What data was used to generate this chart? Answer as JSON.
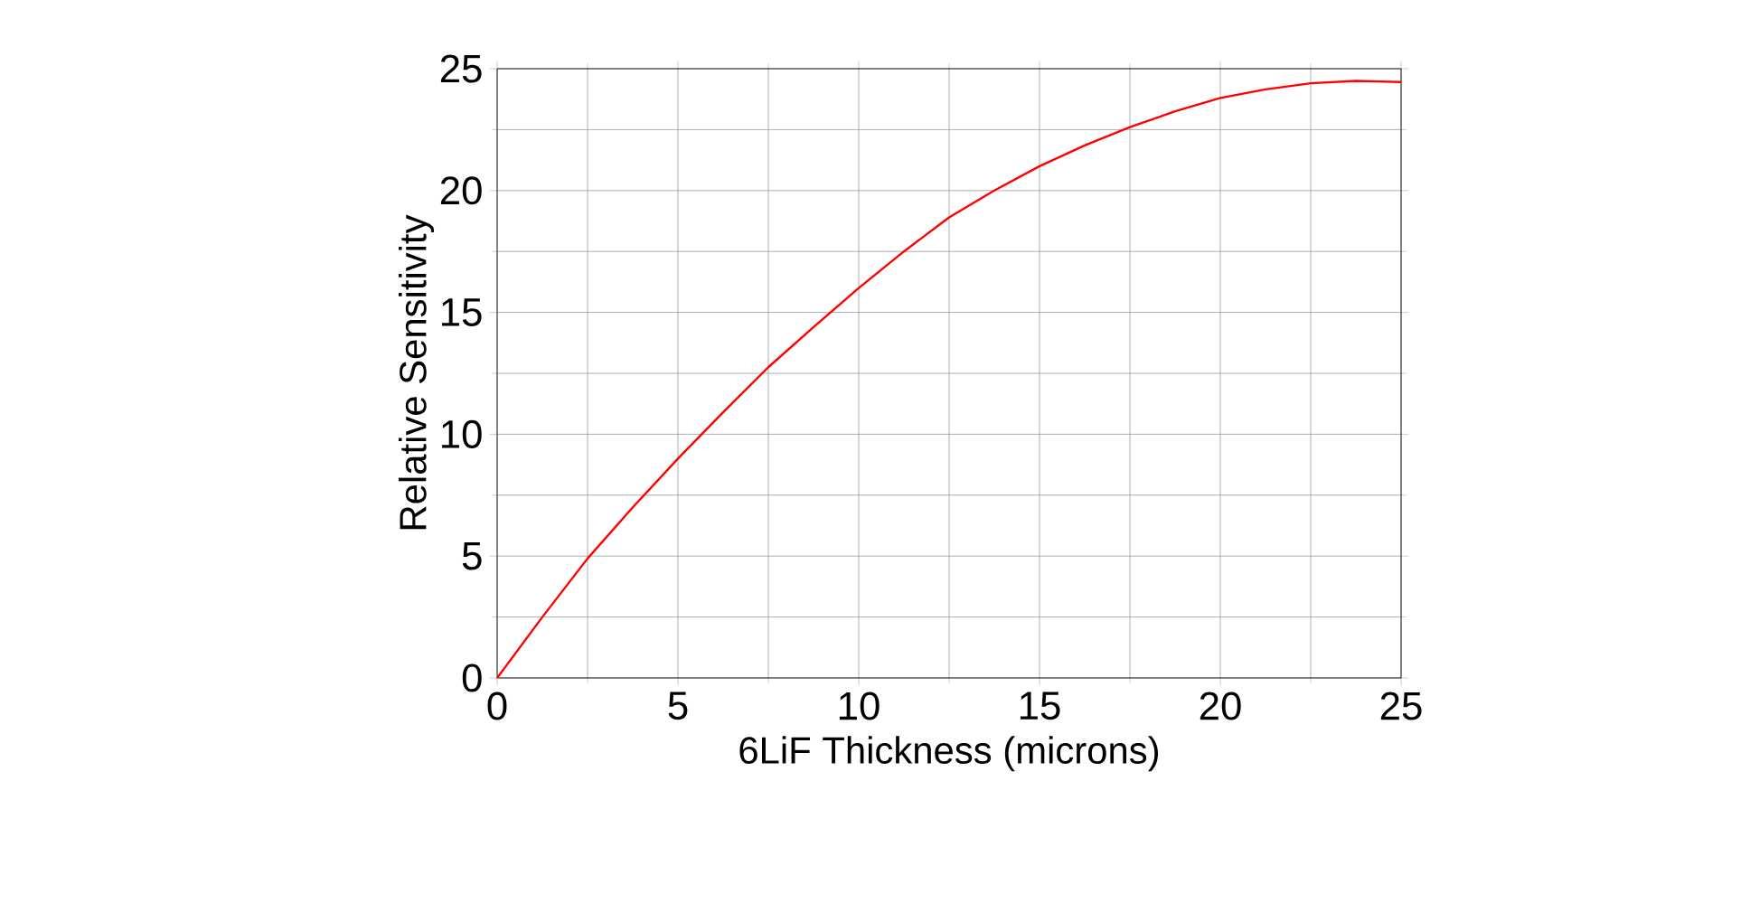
{
  "chart_data": {
    "type": "line",
    "xlabel": "6LiF Thickness (microns)",
    "ylabel": "Relative Sensitivity",
    "xlim": [
      0,
      25
    ],
    "ylim": [
      0,
      25
    ],
    "xticks": [
      0,
      5,
      10,
      15,
      20,
      25
    ],
    "yticks": [
      0,
      5,
      10,
      15,
      20,
      25
    ],
    "grid": true,
    "series": [
      {
        "color": "#ff0000",
        "x": [
          0,
          1.25,
          2.5,
          3.75,
          5,
          6.25,
          7.5,
          8.75,
          10,
          11.25,
          12.5,
          13.75,
          15,
          16.25,
          17.5,
          18.75,
          20,
          21.25,
          22.5,
          23.75,
          25
        ],
        "values": [
          0,
          2.5,
          4.9,
          7.0,
          9.0,
          10.9,
          12.75,
          14.4,
          16.0,
          17.5,
          18.9,
          20.0,
          21.0,
          21.85,
          22.6,
          23.25,
          23.8,
          24.15,
          24.4,
          24.5,
          24.45
        ]
      }
    ]
  }
}
